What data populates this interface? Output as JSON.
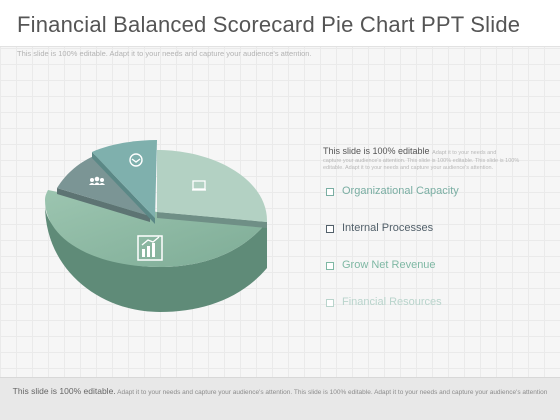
{
  "slide": {
    "title": "Financial Balanced Scorecard Pie Chart PPT Slide",
    "subtitle": "This slide is 100% editable. Adapt it to your needs and capture your audience's attention."
  },
  "pie": {
    "icons": [
      "handshake-icon",
      "team-icon",
      "presentation-icon",
      "growth-chart-icon"
    ],
    "colors": {
      "light": "#a9cbbd",
      "teal": "#7fb0ad",
      "slate": "#7b9595",
      "large": "#8db8a2"
    }
  },
  "text_block": {
    "heading": "This slide is 100% editable",
    "heading_small": "Adapt it to your needs and",
    "body": "capture your audience's attention. This slide is 100% editable. This slide is 100% editable. Adapt it to your needs and capture your audience's attention."
  },
  "legend": {
    "items": [
      {
        "label": "Organizational Capacity",
        "color": "#7aaea3"
      },
      {
        "label": "Internal Processes",
        "color": "#52606a"
      },
      {
        "label": "Grow Net Revenue",
        "color": "#7fb8a4"
      },
      {
        "label": "Financial Resources",
        "color": "#b9d4cc"
      }
    ]
  },
  "footer": {
    "lead": "This slide is 100% editable.",
    "rest": "Adapt it to your needs and capture your audience's attention. This slide is 100% editable. Adapt it to your needs and capture your audience's attention"
  }
}
